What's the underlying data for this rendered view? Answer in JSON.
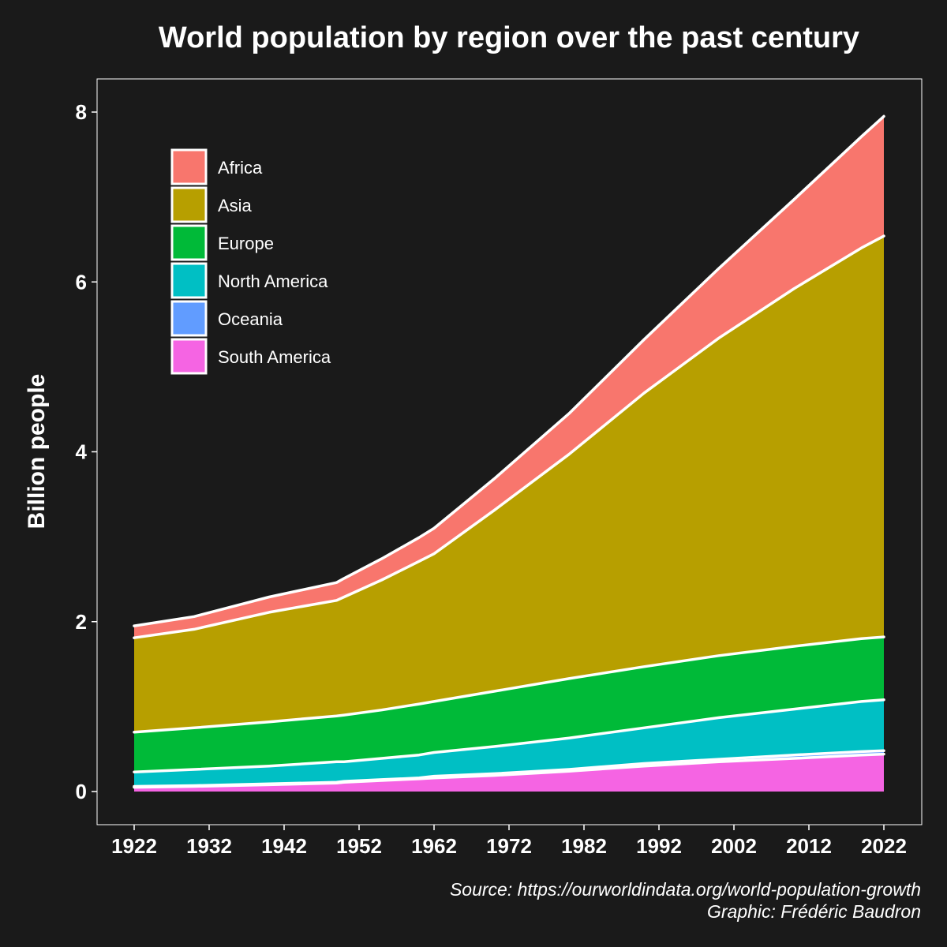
{
  "chart_data": {
    "type": "area",
    "stacked": true,
    "title": "World population by region over the past century",
    "ylabel": "Billion people",
    "xlabel": "",
    "xlim": [
      1922,
      2022
    ],
    "ylim": [
      0,
      8
    ],
    "x_ticks": [
      "1922",
      "1932",
      "1942",
      "1952",
      "1962",
      "1972",
      "1982",
      "1992",
      "2002",
      "2012",
      "2022"
    ],
    "y_ticks": [
      "0",
      "2",
      "4",
      "6",
      "8"
    ],
    "grid": false,
    "legend_position": "top-left",
    "background": "#1a1a1a",
    "outline_color": "#ffffff",
    "x": [
      1922,
      1930,
      1940,
      1949,
      1950,
      1955,
      1960,
      1962,
      1970,
      1980,
      1990,
      2000,
      2010,
      2019,
      2022
    ],
    "series": [
      {
        "name": "South America",
        "color": "#f564e3",
        "values": [
          0.05,
          0.06,
          0.08,
          0.1,
          0.11,
          0.13,
          0.15,
          0.16,
          0.19,
          0.24,
          0.3,
          0.35,
          0.39,
          0.43,
          0.44
        ]
      },
      {
        "name": "Oceania",
        "color": "#619cff",
        "values": [
          0.01,
          0.01,
          0.01,
          0.01,
          0.01,
          0.01,
          0.01,
          0.02,
          0.02,
          0.02,
          0.03,
          0.03,
          0.04,
          0.04,
          0.04
        ]
      },
      {
        "name": "North America",
        "color": "#00bfc4",
        "values": [
          0.17,
          0.19,
          0.21,
          0.24,
          0.23,
          0.25,
          0.27,
          0.28,
          0.32,
          0.37,
          0.42,
          0.49,
          0.54,
          0.59,
          0.6
        ]
      },
      {
        "name": "Europe",
        "color": "#00ba38",
        "values": [
          0.47,
          0.49,
          0.52,
          0.54,
          0.55,
          0.57,
          0.6,
          0.6,
          0.65,
          0.7,
          0.72,
          0.73,
          0.74,
          0.74,
          0.74
        ]
      },
      {
        "name": "Asia",
        "color": "#b79f00",
        "values": [
          1.11,
          1.16,
          1.29,
          1.36,
          1.39,
          1.53,
          1.68,
          1.74,
          2.13,
          2.64,
          3.22,
          3.74,
          4.21,
          4.6,
          4.72
        ]
      },
      {
        "name": "Africa",
        "color": "#f8766d",
        "values": [
          0.14,
          0.15,
          0.18,
          0.21,
          0.22,
          0.25,
          0.28,
          0.3,
          0.37,
          0.48,
          0.63,
          0.82,
          1.05,
          1.31,
          1.41
        ]
      }
    ],
    "legend_order": [
      "Africa",
      "Asia",
      "Europe",
      "North America",
      "Oceania",
      "South America"
    ]
  },
  "caption": {
    "source": "Source: https://ourworldindata.org/world-population-growth",
    "graphic": "Graphic: Frédéric Baudron"
  }
}
